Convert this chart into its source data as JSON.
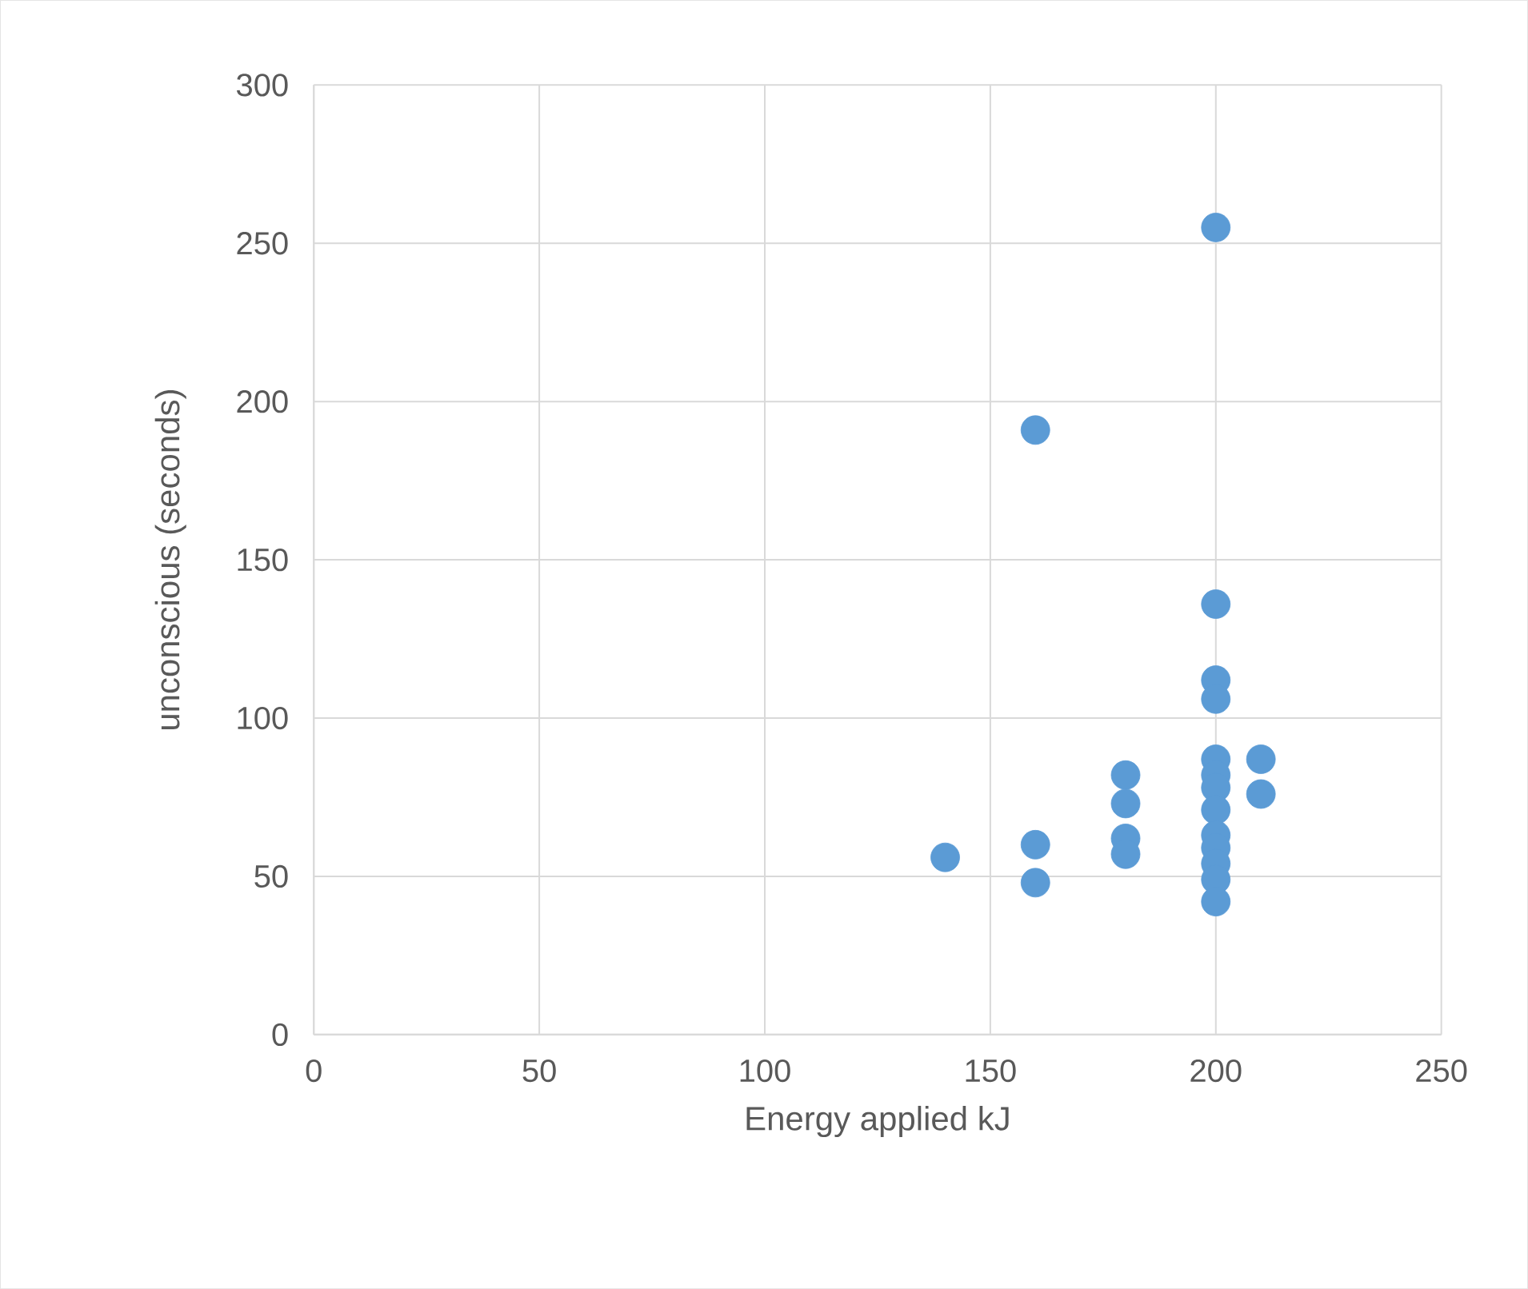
{
  "chart_data": {
    "type": "scatter",
    "xlabel": "Energy applied kJ",
    "ylabel": "unconscious (seconds)",
    "x": [
      140,
      160,
      160,
      160,
      180,
      180,
      180,
      180,
      200,
      200,
      200,
      200,
      200,
      200,
      200,
      200,
      200,
      200,
      200,
      200,
      200,
      210,
      210
    ],
    "values": [
      56,
      191,
      60,
      48,
      82,
      73,
      62,
      57,
      255,
      136,
      112,
      106,
      87,
      82,
      78,
      71,
      63,
      59,
      54,
      49,
      42,
      87,
      76
    ],
    "color": "#5b9bd5",
    "marker": "circle",
    "grid": true,
    "xlim": [
      0,
      250
    ],
    "xticks": [
      0,
      50,
      100,
      150,
      200,
      250
    ],
    "ylim": [
      0,
      300
    ],
    "yticks": [
      0,
      50,
      100,
      150,
      200,
      250,
      300
    ]
  }
}
